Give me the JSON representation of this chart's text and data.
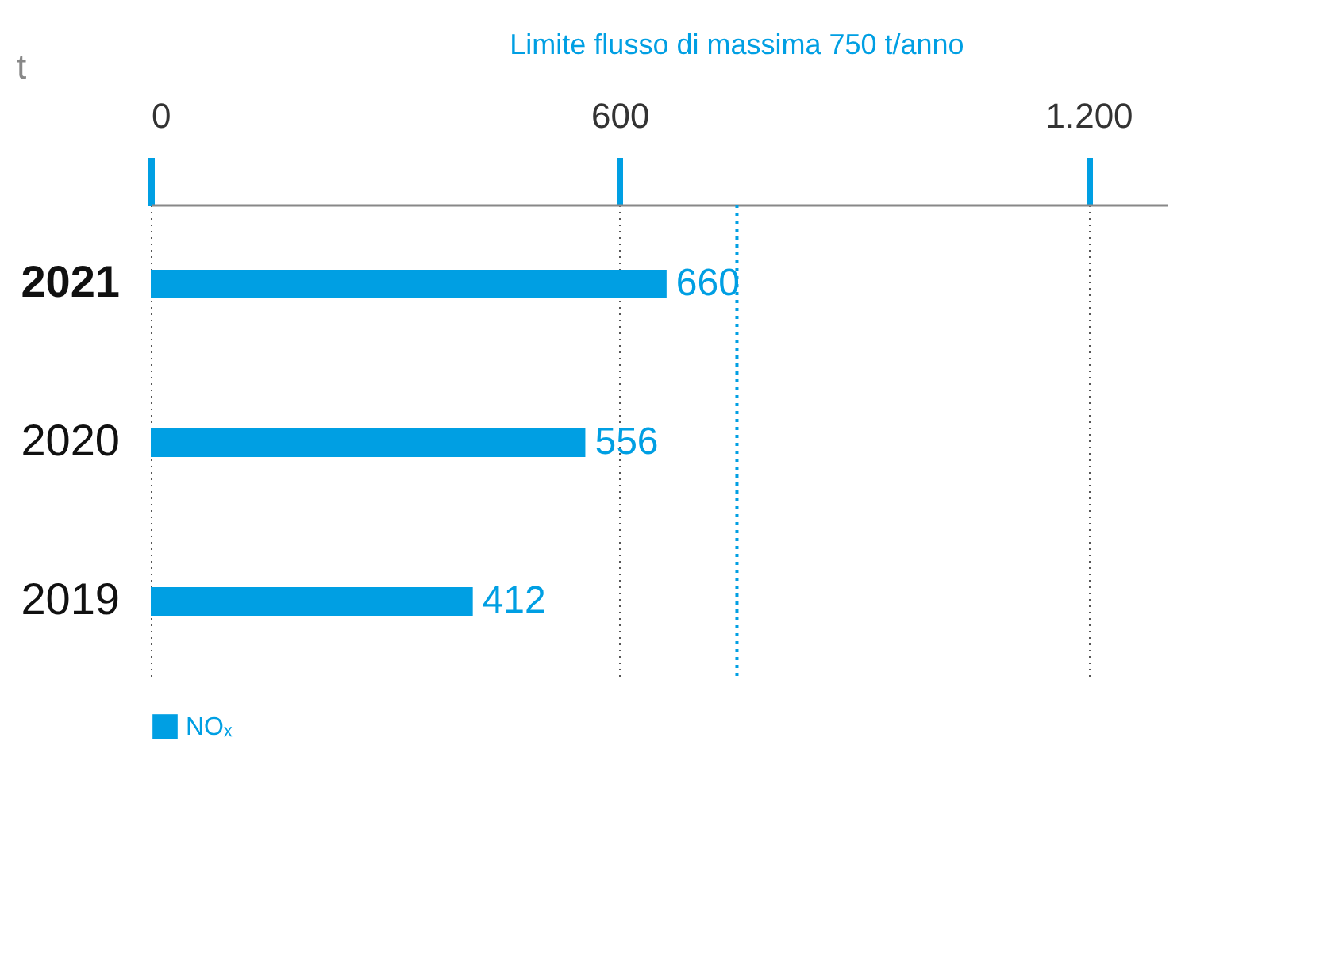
{
  "chart_data": {
    "type": "bar",
    "orientation": "horizontal",
    "ylabel": "t",
    "categories": [
      "2021",
      "2020",
      "2019"
    ],
    "series": [
      {
        "name": "NOₓ",
        "color": "#009fe3",
        "values": [
          660,
          556,
          412
        ]
      }
    ],
    "xlim": [
      0,
      1300
    ],
    "xticks": [
      0,
      600,
      {
        "value": 1200,
        "label": "1.200"
      }
    ],
    "grid": "x",
    "data_labels": true,
    "legend": "bottom left",
    "ref_lines": [
      {
        "axis": "x",
        "value": 750,
        "label": "Limite flusso di massima 750 t/anno",
        "color": "#009fe3",
        "line_style": "dotted"
      }
    ]
  }
}
